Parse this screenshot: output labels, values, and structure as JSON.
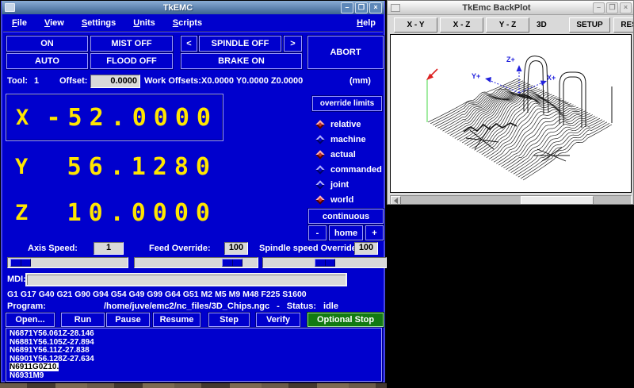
{
  "colors": {
    "window_blue": "#0000cd",
    "titlebar_blue": "#4a76ad",
    "axis_display_yellow": "#ffe600",
    "entry_gray": "#d9d9d9",
    "optional_stop_green": "#127a12",
    "backplot_canvas_white": "#ffffff",
    "plot_axis_blue": "#2222dd",
    "tool_marker_red": "#dd2222",
    "tool_line_green": "#8ce88c"
  },
  "main_window": {
    "title": "TkEMC",
    "window_icons": {
      "minimize": "–",
      "maximize": "❒",
      "close": "×"
    },
    "menu": {
      "items": [
        "File",
        "View",
        "Settings",
        "Units",
        "Scripts"
      ],
      "help": "Help"
    },
    "machine_buttons": {
      "on": "ON",
      "auto": "AUTO",
      "mist": "MIST OFF",
      "flood": "FLOOD OFF",
      "spindle_prev": "<",
      "spindle": "SPINDLE OFF",
      "spindle_next": ">",
      "brake": "BRAKE ON",
      "abort": "ABORT"
    },
    "tool_row": {
      "tool_label": "Tool:",
      "tool_value": "1",
      "offset_label": "Offset:",
      "offset_value": "0.0000",
      "work_offsets_label": "Work Offsets:",
      "work_offsets_value": "X0.0000 Y0.0000 Z0.0000",
      "units": "(mm)"
    },
    "axes": [
      {
        "letter": "X",
        "value": "-52.0000",
        "selected": true
      },
      {
        "letter": "Y",
        "value": "56.1280",
        "selected": false
      },
      {
        "letter": "Z",
        "value": "10.0000",
        "selected": false
      }
    ],
    "right_panel": {
      "override_limits_label": "override limits",
      "radios": [
        {
          "label": "relative",
          "selected": true
        },
        {
          "label": "machine",
          "selected": false
        },
        {
          "label": "actual",
          "selected": true
        },
        {
          "label": "commanded",
          "selected": false
        },
        {
          "label": "joint",
          "selected": false
        },
        {
          "label": "world",
          "selected": true
        }
      ],
      "continuous_label": "continuous",
      "jog_minus": "-",
      "home_label": "home",
      "jog_plus": "+"
    },
    "speed_row": {
      "axis_speed_label": "Axis Speed:",
      "axis_speed_value": "1",
      "feed_override_label": "Feed Override:",
      "feed_override_value": "100",
      "spindle_override_label": "Spindle speed Override:",
      "spindle_override_value": "100"
    },
    "sliders": [
      {
        "name": "axis-speed",
        "percent": 2
      },
      {
        "name": "feed-override",
        "percent": 85
      },
      {
        "name": "spindle-speed-override",
        "percent": 50
      }
    ],
    "mdi": {
      "label": "MDI:",
      "value": ""
    },
    "active_g_codes": "G1 G17 G40 G21 G90 G94 G54 G49 G99 G64 G51 M2 M5 M9 M48 F225 S1600",
    "program": {
      "label": "Program:",
      "path": "/home/juve/emc2/nc_files/3D_Chips.ngc",
      "separator": "-",
      "status_label": "Status:",
      "status_value": "idle"
    },
    "program_buttons": [
      "Open...",
      "Run",
      "Pause",
      "Resume",
      "Step",
      "Verify",
      "Optional Stop"
    ],
    "code_lines": [
      {
        "text": "N6871Y56.061Z-28.146",
        "highlight": false
      },
      {
        "text": "N6881Y56.105Z-27.894",
        "highlight": false
      },
      {
        "text": "N6891Y56.11Z-27.838",
        "highlight": false
      },
      {
        "text": "N6901Y56.128Z-27.634",
        "highlight": false
      },
      {
        "text": "N6911G0Z10.",
        "highlight": true
      },
      {
        "text": "N6931M9",
        "highlight": false
      }
    ]
  },
  "backplot_window": {
    "title": "TkEmc BackPlot",
    "window_icons": {
      "minimize": "–",
      "maximize": "❒",
      "close": "×"
    },
    "view_buttons": [
      "X - Y",
      "X - Z",
      "Y - Z"
    ],
    "mode_label": "3D",
    "setup_label": "SETUP",
    "reset_label": "RESET",
    "axis_labels": {
      "z": "Z+",
      "y": "Y+",
      "x": "X+"
    }
  }
}
